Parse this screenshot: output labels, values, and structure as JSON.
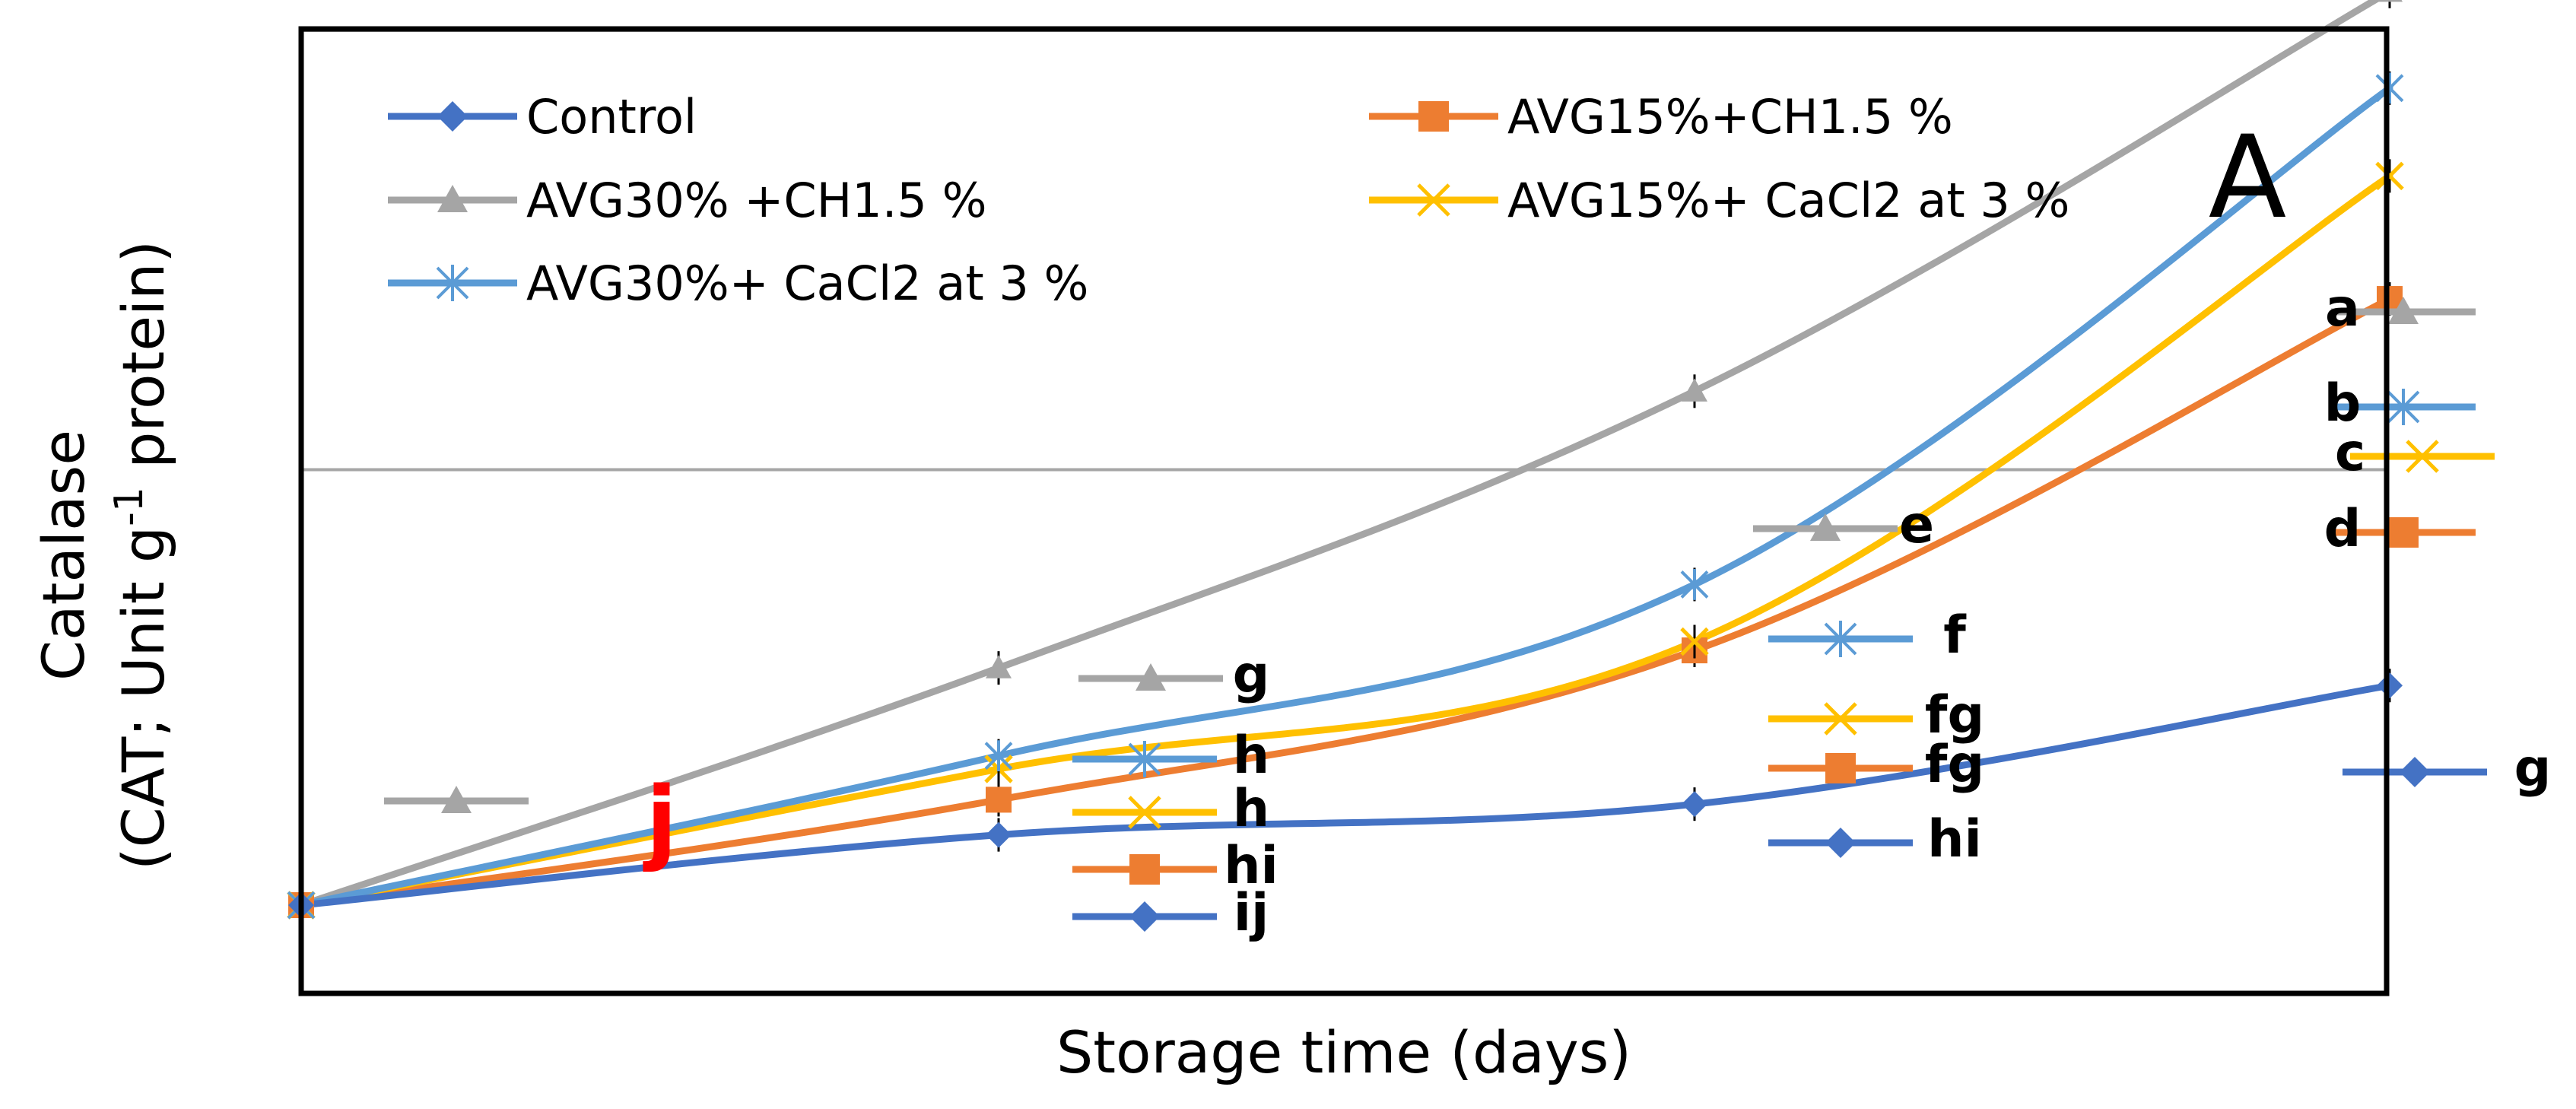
{
  "chart_data": {
    "type": "line",
    "panel_label": "A",
    "xlabel": "Storage time (days)",
    "ylabel_line1": "Catalase",
    "ylabel_line2_prefix": "(CAT; Unit g",
    "ylabel_superscript": "-1",
    "ylabel_line2_suffix": " protein)",
    "x": [
      0,
      1,
      2,
      3
    ],
    "ylim": [
      0,
      1
    ],
    "grid": "horizontal",
    "legend_placement": "top-left",
    "series": [
      {
        "name": "Control",
        "color": "#4472C4",
        "marker": "diamond",
        "values": [
          0.0,
          0.08,
          0.115,
          0.25
        ]
      },
      {
        "name": "AVG15%+CH1.5 %",
        "color": "#ED7D31",
        "marker": "square",
        "values": [
          0.0,
          0.12,
          0.29,
          0.69
        ]
      },
      {
        "name": "AVG30% +CH1.5 %",
        "color": "#A5A5A5",
        "marker": "triangle",
        "values": [
          0.0,
          0.27,
          0.585,
          1.04
        ]
      },
      {
        "name": "AVG15%+ CaCl2  at 3 %",
        "color": "#FFC000",
        "marker": "x",
        "values": [
          0.0,
          0.155,
          0.3,
          0.83
        ]
      },
      {
        "name": "AVG30%+  CaCl2  at 3 %",
        "color": "#5B9BD5",
        "marker": "star",
        "values": [
          0.0,
          0.17,
          0.365,
          0.93
        ]
      }
    ],
    "annotations": [
      {
        "text": "a",
        "color": "#000000"
      },
      {
        "text": "b",
        "color": "#000000"
      },
      {
        "text": "c",
        "color": "#000000"
      },
      {
        "text": "d",
        "color": "#000000"
      },
      {
        "text": "e",
        "color": "#000000"
      },
      {
        "text": "f",
        "color": "#000000"
      },
      {
        "text": "fg",
        "color": "#000000"
      },
      {
        "text": "fg",
        "color": "#000000"
      },
      {
        "text": "g",
        "color": "#000000"
      },
      {
        "text": "g",
        "color": "#000000"
      },
      {
        "text": "h",
        "color": "#000000"
      },
      {
        "text": "h",
        "color": "#000000"
      },
      {
        "text": "hi",
        "color": "#000000"
      },
      {
        "text": "hi",
        "color": "#000000"
      },
      {
        "text": "ij",
        "color": "#000000"
      },
      {
        "text": "j",
        "color": "#FF0000"
      }
    ]
  }
}
